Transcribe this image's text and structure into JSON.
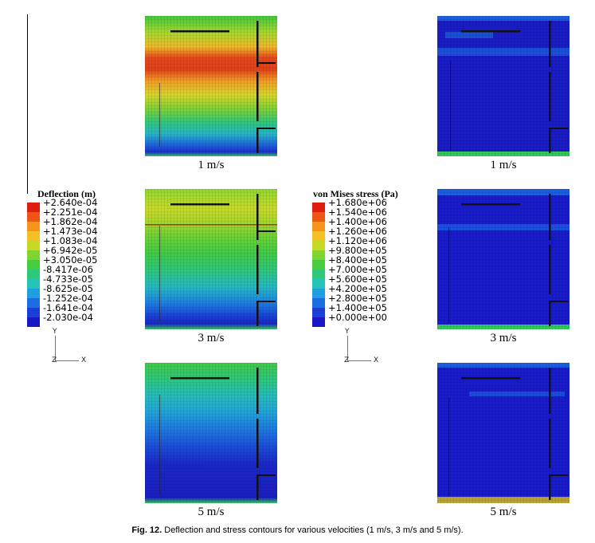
{
  "deflection_legend": {
    "title": "Deflection (m)",
    "values": [
      "+2.640e-04",
      "+2.251e-04",
      "+1.862e-04",
      "+1.473e-04",
      "+1.083e-04",
      "+6.942e-05",
      "+3.050e-05",
      "-8.417e-06",
      "-4.733e-05",
      "-8.625e-05",
      "-1.252e-04",
      "-1.641e-04",
      "-2.030e-04"
    ]
  },
  "stress_legend": {
    "title": "von Mises stress (Pa)",
    "values": [
      "+1.680e+06",
      "+1.540e+06",
      "+1.400e+06",
      "+1.260e+06",
      "+1.120e+06",
      "+9.800e+05",
      "+8.400e+05",
      "+7.000e+05",
      "+5.600e+05",
      "+4.200e+05",
      "+2.800e+05",
      "+1.400e+05",
      "+0.000e+00"
    ]
  },
  "colormap": [
    "#dd1e10",
    "#ee5516",
    "#f7941d",
    "#f3c026",
    "#c8d925",
    "#80d430",
    "#46cc3e",
    "#2ec87a",
    "#24c4b8",
    "#1f9ee0",
    "#1c6de2",
    "#1a3fd6",
    "#1a18c4"
  ],
  "axes": {
    "y": "Y",
    "z": "Z",
    "x": "X"
  },
  "velocities": [
    "1 m/s",
    "3 m/s",
    "5 m/s"
  ],
  "caption": {
    "label": "Fig. 12.",
    "text": " Deflection and stress contours for various velocities (1 m/s, 3 m/s and 5 m/s)."
  }
}
